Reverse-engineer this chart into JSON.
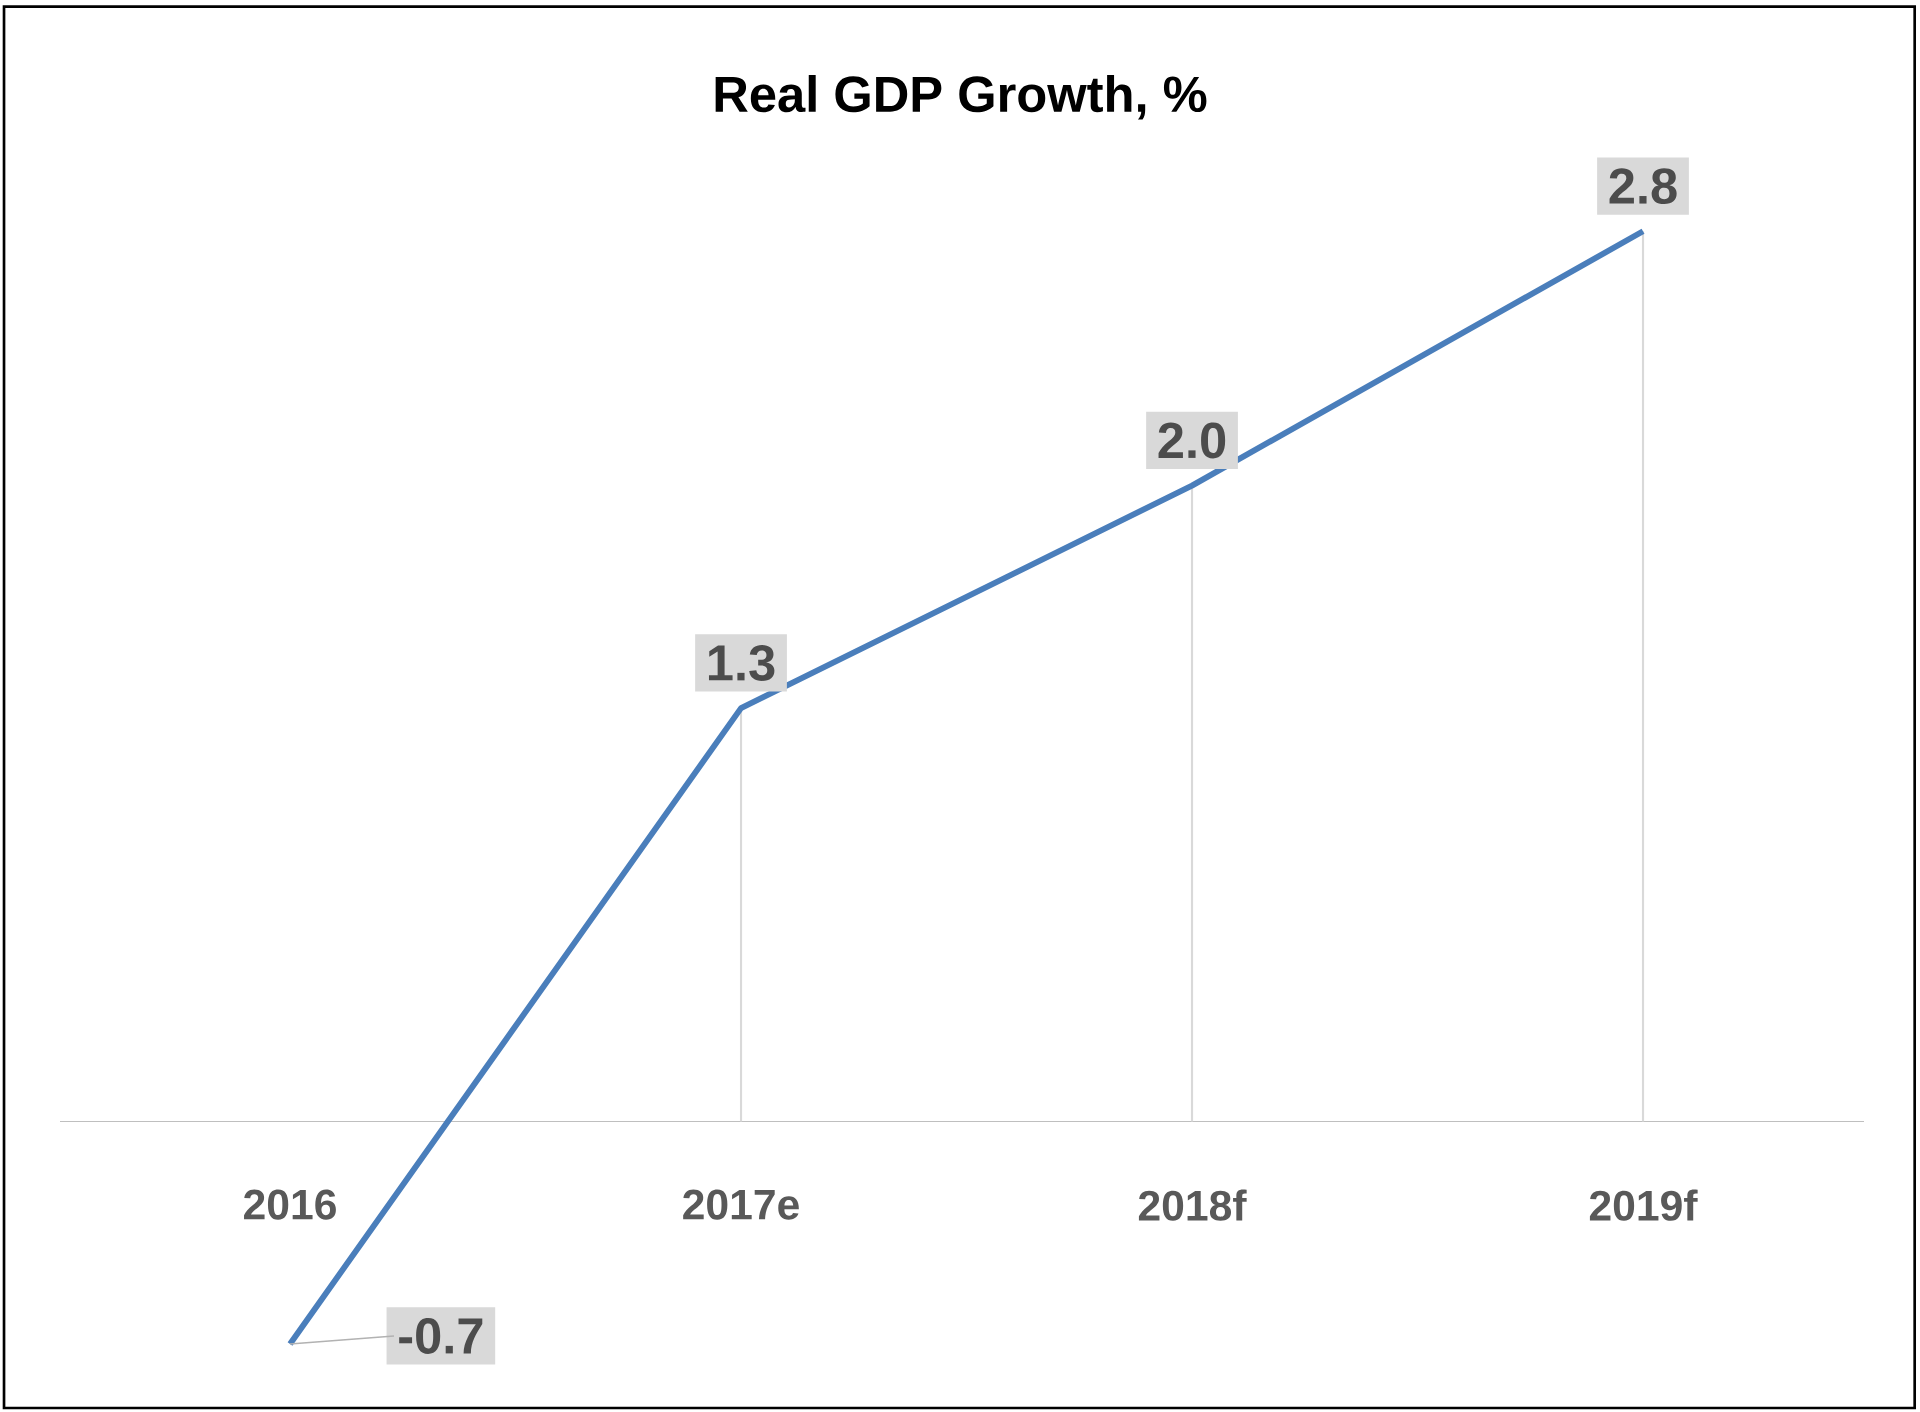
{
  "chart_data": {
    "type": "line",
    "title": "Real GDP Growth, %",
    "categories": [
      "2016",
      "2017e",
      "2018f",
      "2019f"
    ],
    "series": [
      {
        "color": "#4a7ebb",
        "values": [
          -0.7,
          1.3,
          2.0,
          2.8
        ],
        "value_labels": [
          "-0.7",
          "1.3",
          "2.0",
          "2.8"
        ]
      }
    ],
    "grid": "x",
    "marker": "none",
    "line_style": "solid"
  }
}
